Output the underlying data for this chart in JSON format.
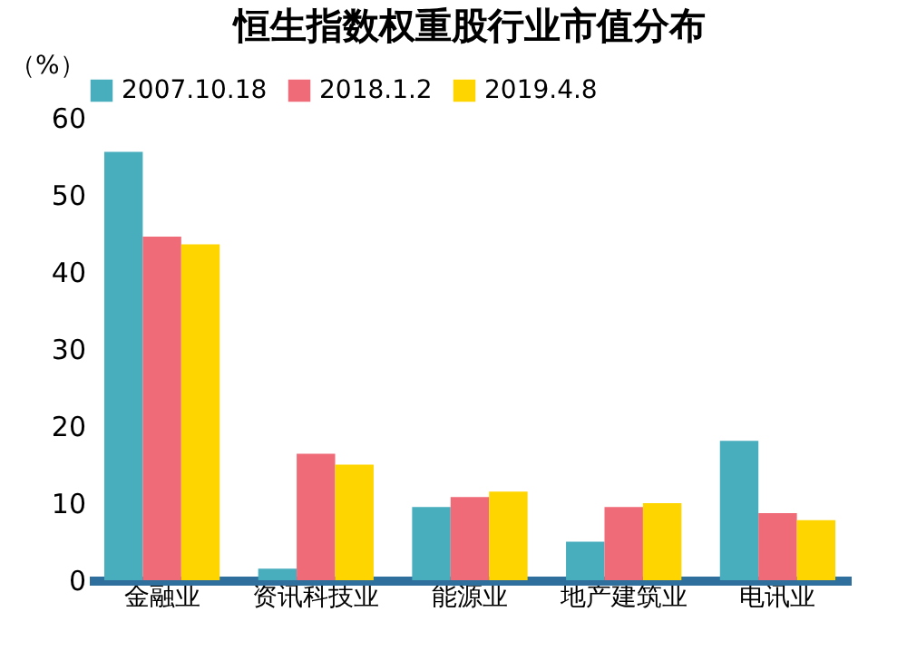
{
  "chart_data": {
    "type": "bar",
    "title": "恒生指数权重股行业市值分布",
    "ylabel": "（%）",
    "categories": [
      "金融业",
      "资讯科技业",
      "能源业",
      "地产建筑业",
      "电讯业"
    ],
    "series": [
      {
        "name": "2007.10.18",
        "color": "#48adbd",
        "values": [
          55.6,
          1.5,
          9.5,
          5.0,
          18.1
        ]
      },
      {
        "name": "2018.1.2",
        "color": "#f06b78",
        "values": [
          44.6,
          16.4,
          10.8,
          9.5,
          8.7
        ]
      },
      {
        "name": "2019.4.8",
        "color": "#ffd500",
        "values": [
          43.6,
          15.0,
          11.5,
          10.0,
          7.8
        ]
      }
    ],
    "ylim": [
      0,
      60
    ],
    "yticks": [
      0,
      10,
      20,
      30,
      40,
      50,
      60
    ],
    "grid": false,
    "legend": "top"
  }
}
